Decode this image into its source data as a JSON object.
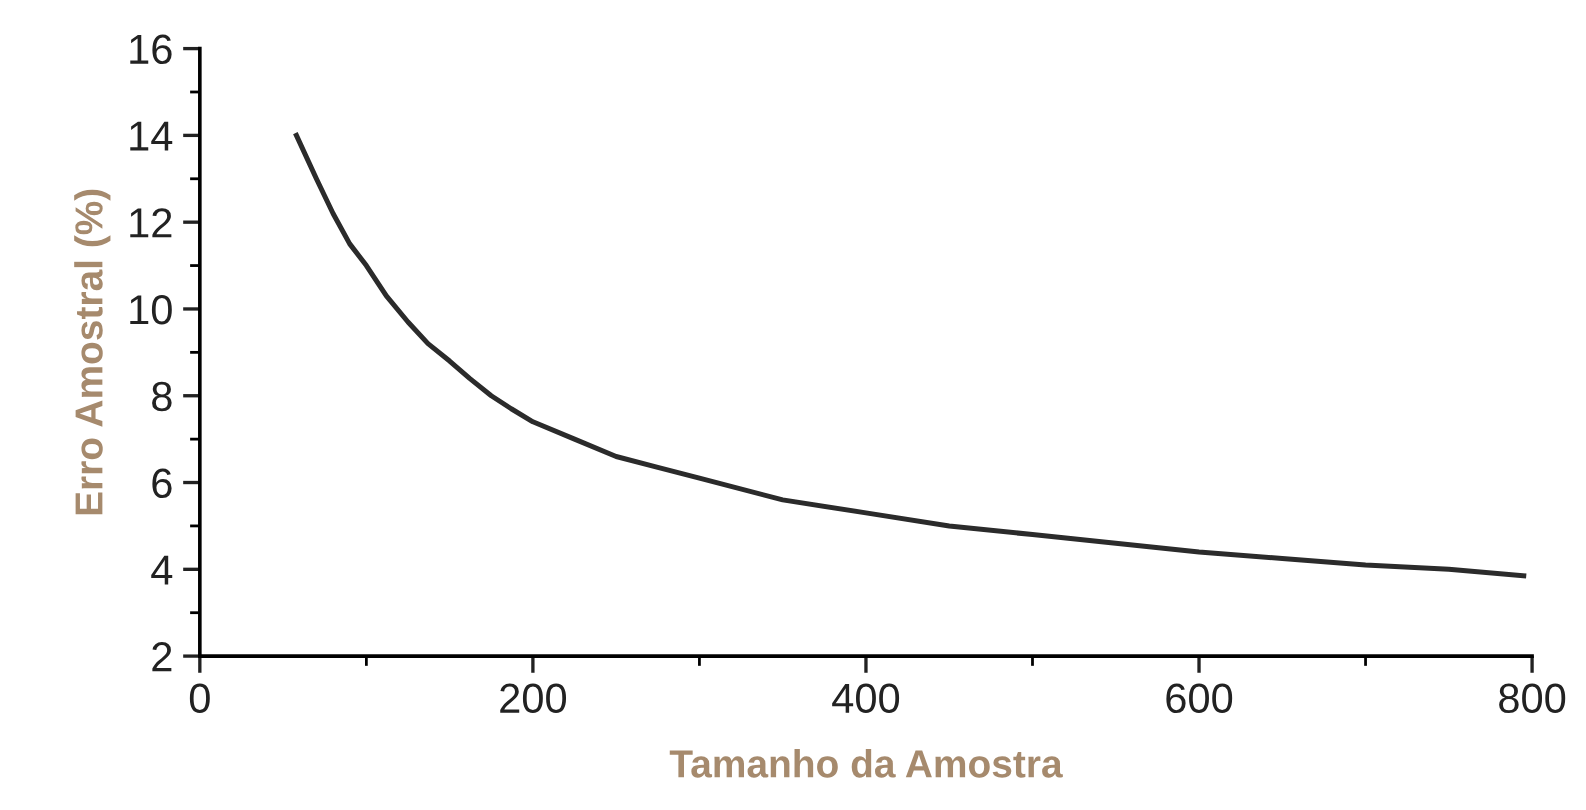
{
  "chart_data": {
    "type": "line",
    "xlabel": "Tamanho da Amostra",
    "ylabel": "Erro Amostral (%)",
    "x": [
      58,
      70,
      80,
      90,
      100,
      112,
      125,
      137,
      150,
      162,
      175,
      187,
      200,
      225,
      250,
      275,
      300,
      350,
      400,
      450,
      500,
      550,
      600,
      650,
      700,
      750,
      795
    ],
    "series": [
      {
        "color": "#2b2b2b",
        "values": [
          14.0,
          13.0,
          12.2,
          11.5,
          11.0,
          10.3,
          9.7,
          9.2,
          8.8,
          8.4,
          8.0,
          7.7,
          7.4,
          7.0,
          6.6,
          6.35,
          6.1,
          5.6,
          5.3,
          5.0,
          4.8,
          4.6,
          4.4,
          4.25,
          4.1,
          4.0,
          3.85
        ]
      }
    ],
    "xlim": [
      0,
      800
    ],
    "ylim": [
      2,
      16
    ],
    "xticks": [
      0,
      {
        "value": 100,
        "label": null
      },
      200,
      {
        "value": 300,
        "label": null
      },
      400,
      {
        "value": 500,
        "label": null
      },
      600,
      {
        "value": 700,
        "label": null
      },
      800
    ],
    "yticks": [
      2,
      {
        "value": 3,
        "label": null
      },
      4,
      {
        "value": 5,
        "label": null
      },
      6,
      {
        "value": 7,
        "label": null
      },
      8,
      {
        "value": 9,
        "label": null
      },
      10,
      {
        "value": 11,
        "label": null
      },
      12,
      {
        "value": 13,
        "label": null
      },
      14,
      {
        "value": 15,
        "label": null
      },
      16
    ],
    "grid": false,
    "marker": "none",
    "line_style": "solid"
  }
}
